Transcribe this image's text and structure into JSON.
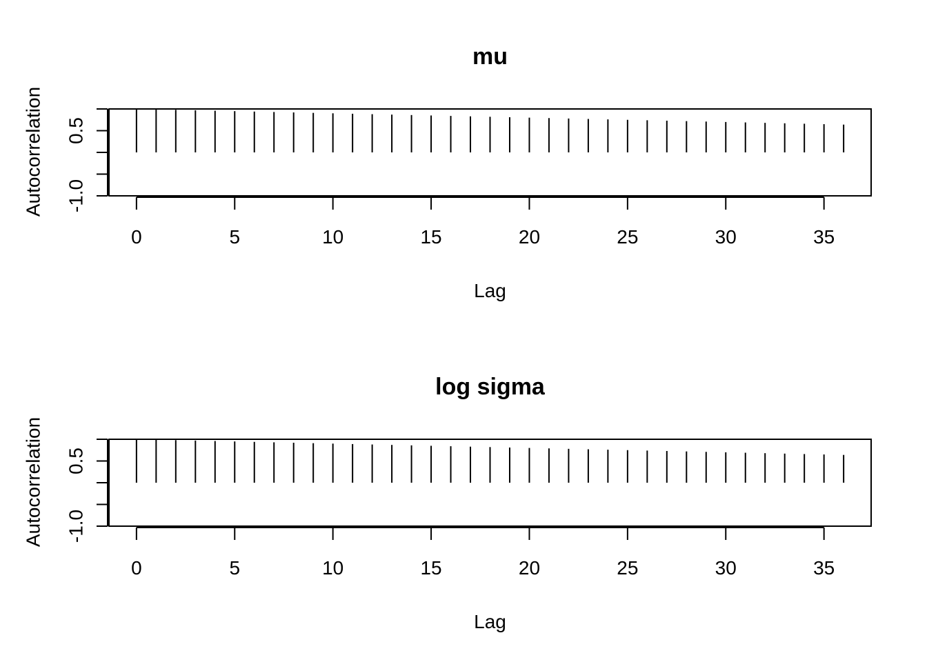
{
  "chart_data": [
    {
      "type": "bar",
      "title": "mu",
      "xlabel": "Lag",
      "ylabel": "Autocorrelation",
      "xlim": [
        -1.4,
        37.4
      ],
      "ylim": [
        -1,
        1
      ],
      "xticks": [
        0,
        5,
        10,
        15,
        20,
        25,
        30,
        35
      ],
      "yticks": [
        -1.0,
        -0.5,
        0.0,
        0.5,
        1.0
      ],
      "ytick_labels": [
        "-1.0",
        "",
        "",
        "0.5",
        ""
      ],
      "x": [
        0,
        1,
        2,
        3,
        4,
        5,
        6,
        7,
        8,
        9,
        10,
        11,
        12,
        13,
        14,
        15,
        16,
        17,
        18,
        19,
        20,
        21,
        22,
        23,
        24,
        25,
        26,
        27,
        28,
        29,
        30,
        31,
        32,
        33,
        34,
        35,
        36
      ],
      "values": [
        1.0,
        0.99,
        0.98,
        0.97,
        0.96,
        0.95,
        0.94,
        0.93,
        0.92,
        0.91,
        0.9,
        0.89,
        0.88,
        0.87,
        0.86,
        0.85,
        0.84,
        0.83,
        0.82,
        0.81,
        0.8,
        0.79,
        0.78,
        0.77,
        0.76,
        0.75,
        0.74,
        0.73,
        0.72,
        0.71,
        0.7,
        0.69,
        0.68,
        0.67,
        0.66,
        0.65,
        0.64
      ],
      "grid": false
    },
    {
      "type": "bar",
      "title": "log sigma",
      "xlabel": "Lag",
      "ylabel": "Autocorrelation",
      "xlim": [
        -1.4,
        37.4
      ],
      "ylim": [
        -1,
        1
      ],
      "xticks": [
        0,
        5,
        10,
        15,
        20,
        25,
        30,
        35
      ],
      "yticks": [
        -1.0,
        -0.5,
        0.0,
        0.5,
        1.0
      ],
      "ytick_labels": [
        "-1.0",
        "",
        "",
        "0.5",
        ""
      ],
      "x": [
        0,
        1,
        2,
        3,
        4,
        5,
        6,
        7,
        8,
        9,
        10,
        11,
        12,
        13,
        14,
        15,
        16,
        17,
        18,
        19,
        20,
        21,
        22,
        23,
        24,
        25,
        26,
        27,
        28,
        29,
        30,
        31,
        32,
        33,
        34,
        35,
        36
      ],
      "values": [
        1.0,
        0.99,
        0.98,
        0.97,
        0.96,
        0.95,
        0.94,
        0.93,
        0.92,
        0.91,
        0.9,
        0.89,
        0.88,
        0.87,
        0.86,
        0.85,
        0.84,
        0.83,
        0.82,
        0.81,
        0.8,
        0.79,
        0.78,
        0.77,
        0.76,
        0.75,
        0.74,
        0.73,
        0.72,
        0.71,
        0.7,
        0.69,
        0.68,
        0.67,
        0.66,
        0.65,
        0.64
      ],
      "grid": false
    }
  ]
}
